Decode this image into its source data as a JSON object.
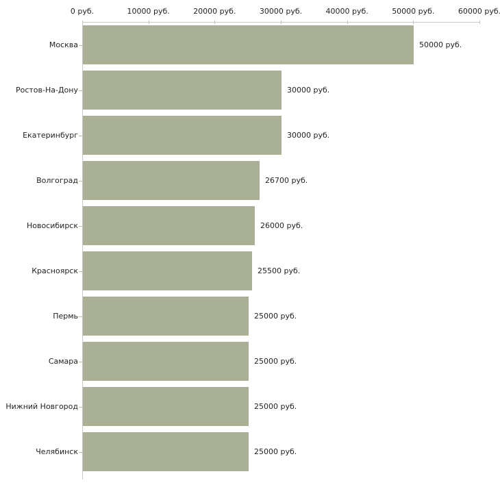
{
  "chart_data": {
    "type": "bar",
    "orientation": "horizontal",
    "title": "",
    "xlabel": "",
    "ylabel": "",
    "unit": "руб.",
    "categories": [
      "Москва",
      "Ростов-На-Дону",
      "Екатеринбург",
      "Волгоград",
      "Новосибирск",
      "Красноярск",
      "Пермь",
      "Самара",
      "Нижний Новгород",
      "Челябинск"
    ],
    "values": [
      50000,
      30000,
      30000,
      26700,
      26000,
      25500,
      25000,
      25000,
      25000,
      25000
    ],
    "value_labels": [
      "50000 руб.",
      "30000 руб.",
      "30000 руб.",
      "26700 руб.",
      "26000 руб.",
      "25500 руб.",
      "25000 руб.",
      "25000 руб.",
      "25000 руб.",
      "25000 руб."
    ],
    "x_axis": {
      "min": 0,
      "max": 60000,
      "tick_step": 10000,
      "tick_values": [
        0,
        10000,
        20000,
        30000,
        40000,
        50000,
        60000
      ],
      "tick_labels": [
        "0 руб.",
        "10000 руб.",
        "20000 руб.",
        "30000 руб.",
        "40000 руб.",
        "50000 руб.",
        "60000 руб."
      ],
      "position": "top"
    },
    "legend": null,
    "grid": false,
    "colors": {
      "bar_fill": "#aab095",
      "axis_line": "#c9c9c9",
      "tick_mark": "#bcc0a4",
      "text": "#222222",
      "background": "#ffffff"
    }
  }
}
